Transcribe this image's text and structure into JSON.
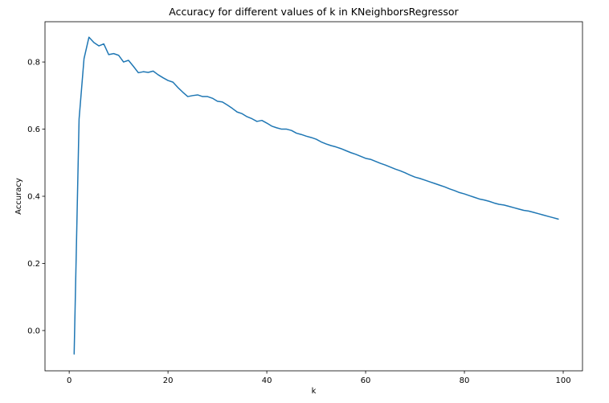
{
  "chart_data": {
    "type": "line",
    "title": "Accuracy for different values of k in KNeighborsRegressor",
    "xlabel": "k",
    "ylabel": "Accuracy",
    "xlim": [
      -4.9,
      103.9
    ],
    "ylim": [
      -0.12,
      0.92
    ],
    "xticks": [
      0,
      20,
      40,
      60,
      80,
      100
    ],
    "yticks": [
      0.0,
      0.2,
      0.4,
      0.6,
      0.8
    ],
    "xtick_labels": [
      "0",
      "20",
      "40",
      "60",
      "80",
      "100"
    ],
    "ytick_labels": [
      "0.0",
      "0.2",
      "0.4",
      "0.6",
      "0.8"
    ],
    "grid": false,
    "legend": "none",
    "series": [
      {
        "color": "#1f77b4",
        "x": [
          1,
          2,
          3,
          4,
          5,
          6,
          7,
          8,
          9,
          10,
          11,
          12,
          13,
          14,
          15,
          16,
          17,
          18,
          19,
          20,
          21,
          22,
          23,
          24,
          25,
          26,
          27,
          28,
          29,
          30,
          31,
          32,
          33,
          34,
          35,
          36,
          37,
          38,
          39,
          40,
          41,
          42,
          43,
          44,
          45,
          46,
          47,
          48,
          49,
          50,
          51,
          52,
          53,
          54,
          55,
          56,
          57,
          58,
          59,
          60,
          61,
          62,
          63,
          64,
          65,
          66,
          67,
          68,
          69,
          70,
          71,
          72,
          73,
          74,
          75,
          76,
          77,
          78,
          79,
          80,
          81,
          82,
          83,
          84,
          85,
          86,
          87,
          88,
          89,
          90,
          91,
          92,
          93,
          94,
          95,
          96,
          97,
          98,
          99
        ],
        "y": [
          -0.07,
          0.63,
          0.81,
          0.874,
          0.858,
          0.848,
          0.854,
          0.822,
          0.825,
          0.82,
          0.8,
          0.805,
          0.787,
          0.768,
          0.771,
          0.769,
          0.773,
          0.762,
          0.753,
          0.745,
          0.74,
          0.724,
          0.71,
          0.697,
          0.7,
          0.702,
          0.697,
          0.697,
          0.692,
          0.683,
          0.681,
          0.672,
          0.662,
          0.651,
          0.646,
          0.637,
          0.631,
          0.623,
          0.626,
          0.618,
          0.609,
          0.604,
          0.6,
          0.6,
          0.596,
          0.588,
          0.584,
          0.579,
          0.575,
          0.57,
          0.562,
          0.556,
          0.551,
          0.547,
          0.542,
          0.536,
          0.53,
          0.525,
          0.519,
          0.513,
          0.51,
          0.504,
          0.498,
          0.493,
          0.487,
          0.481,
          0.476,
          0.47,
          0.463,
          0.457,
          0.453,
          0.448,
          0.443,
          0.438,
          0.433,
          0.428,
          0.422,
          0.417,
          0.411,
          0.407,
          0.402,
          0.397,
          0.392,
          0.389,
          0.385,
          0.38,
          0.376,
          0.374,
          0.37,
          0.366,
          0.362,
          0.358,
          0.356,
          0.352,
          0.348,
          0.344,
          0.34,
          0.336,
          0.332
        ]
      }
    ]
  }
}
